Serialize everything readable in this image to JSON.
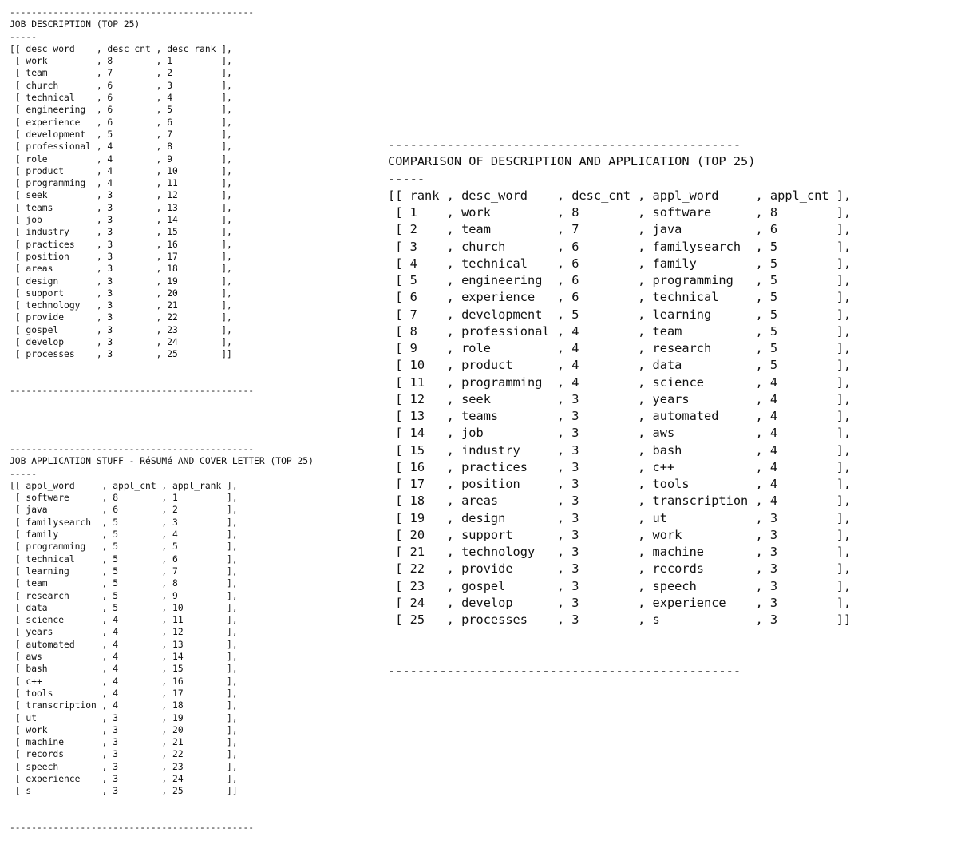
{
  "divider": "---------------------------------------------",
  "big_divider": "------------------------------------------------",
  "underline": "-----",
  "job_description": {
    "title": "JOB DESCRIPTION (TOP 25)",
    "headers": [
      "desc_word",
      "desc_cnt",
      "desc_rank"
    ],
    "rows": [
      [
        "work",
        "8",
        "1"
      ],
      [
        "team",
        "7",
        "2"
      ],
      [
        "church",
        "6",
        "3"
      ],
      [
        "technical",
        "6",
        "4"
      ],
      [
        "engineering",
        "6",
        "5"
      ],
      [
        "experience",
        "6",
        "6"
      ],
      [
        "development",
        "5",
        "7"
      ],
      [
        "professional",
        "4",
        "8"
      ],
      [
        "role",
        "4",
        "9"
      ],
      [
        "product",
        "4",
        "10"
      ],
      [
        "programming",
        "4",
        "11"
      ],
      [
        "seek",
        "3",
        "12"
      ],
      [
        "teams",
        "3",
        "13"
      ],
      [
        "job",
        "3",
        "14"
      ],
      [
        "industry",
        "3",
        "15"
      ],
      [
        "practices",
        "3",
        "16"
      ],
      [
        "position",
        "3",
        "17"
      ],
      [
        "areas",
        "3",
        "18"
      ],
      [
        "design",
        "3",
        "19"
      ],
      [
        "support",
        "3",
        "20"
      ],
      [
        "technology",
        "3",
        "21"
      ],
      [
        "provide",
        "3",
        "22"
      ],
      [
        "gospel",
        "3",
        "23"
      ],
      [
        "develop",
        "3",
        "24"
      ],
      [
        "processes",
        "3",
        "25"
      ]
    ]
  },
  "job_application": {
    "title": "JOB APPLICATION STUFF - RéSUMé AND COVER LETTER (TOP 25)",
    "headers": [
      "appl_word",
      "appl_cnt",
      "appl_rank"
    ],
    "rows": [
      [
        "software",
        "8",
        "1"
      ],
      [
        "java",
        "6",
        "2"
      ],
      [
        "familysearch",
        "5",
        "3"
      ],
      [
        "family",
        "5",
        "4"
      ],
      [
        "programming",
        "5",
        "5"
      ],
      [
        "technical",
        "5",
        "6"
      ],
      [
        "learning",
        "5",
        "7"
      ],
      [
        "team",
        "5",
        "8"
      ],
      [
        "research",
        "5",
        "9"
      ],
      [
        "data",
        "5",
        "10"
      ],
      [
        "science",
        "4",
        "11"
      ],
      [
        "years",
        "4",
        "12"
      ],
      [
        "automated",
        "4",
        "13"
      ],
      [
        "aws",
        "4",
        "14"
      ],
      [
        "bash",
        "4",
        "15"
      ],
      [
        "c++",
        "4",
        "16"
      ],
      [
        "tools",
        "4",
        "17"
      ],
      [
        "transcription",
        "4",
        "18"
      ],
      [
        "ut",
        "3",
        "19"
      ],
      [
        "work",
        "3",
        "20"
      ],
      [
        "machine",
        "3",
        "21"
      ],
      [
        "records",
        "3",
        "22"
      ],
      [
        "speech",
        "3",
        "23"
      ],
      [
        "experience",
        "3",
        "24"
      ],
      [
        "s",
        "3",
        "25"
      ]
    ]
  },
  "comparison": {
    "title": "COMPARISON OF DESCRIPTION AND APPLICATION (TOP 25)",
    "headers": [
      "rank",
      "desc_word",
      "desc_cnt",
      "appl_word",
      "appl_cnt"
    ],
    "rows": [
      [
        "1",
        "work",
        "8",
        "software",
        "8"
      ],
      [
        "2",
        "team",
        "7",
        "java",
        "6"
      ],
      [
        "3",
        "church",
        "6",
        "familysearch",
        "5"
      ],
      [
        "4",
        "technical",
        "6",
        "family",
        "5"
      ],
      [
        "5",
        "engineering",
        "6",
        "programming",
        "5"
      ],
      [
        "6",
        "experience",
        "6",
        "technical",
        "5"
      ],
      [
        "7",
        "development",
        "5",
        "learning",
        "5"
      ],
      [
        "8",
        "professional",
        "4",
        "team",
        "5"
      ],
      [
        "9",
        "role",
        "4",
        "research",
        "5"
      ],
      [
        "10",
        "product",
        "4",
        "data",
        "5"
      ],
      [
        "11",
        "programming",
        "4",
        "science",
        "4"
      ],
      [
        "12",
        "seek",
        "3",
        "years",
        "4"
      ],
      [
        "13",
        "teams",
        "3",
        "automated",
        "4"
      ],
      [
        "14",
        "job",
        "3",
        "aws",
        "4"
      ],
      [
        "15",
        "industry",
        "3",
        "bash",
        "4"
      ],
      [
        "16",
        "practices",
        "3",
        "c++",
        "4"
      ],
      [
        "17",
        "position",
        "3",
        "tools",
        "4"
      ],
      [
        "18",
        "areas",
        "3",
        "transcription",
        "4"
      ],
      [
        "19",
        "design",
        "3",
        "ut",
        "3"
      ],
      [
        "20",
        "support",
        "3",
        "work",
        "3"
      ],
      [
        "21",
        "technology",
        "3",
        "machine",
        "3"
      ],
      [
        "22",
        "provide",
        "3",
        "records",
        "3"
      ],
      [
        "23",
        "gospel",
        "3",
        "speech",
        "3"
      ],
      [
        "24",
        "develop",
        "3",
        "experience",
        "3"
      ],
      [
        "25",
        "processes",
        "3",
        "s",
        "3"
      ]
    ]
  }
}
